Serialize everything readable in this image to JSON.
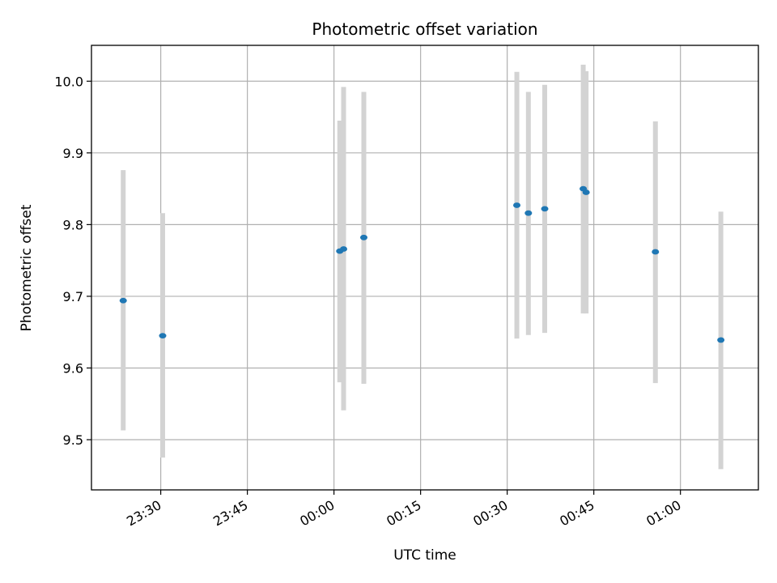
{
  "chart_data": {
    "type": "scatter",
    "title": "Photometric offset variation",
    "xlabel": "UTC time",
    "ylabel": "Photometric offset",
    "x_unit": "time (HH:MM, UTC)",
    "xlim": [
      "23:18:00",
      "01:13:30"
    ],
    "ylim": [
      9.43,
      10.05
    ],
    "x_ticks": [
      "23:30",
      "23:45",
      "00:00",
      "00:15",
      "00:30",
      "00:45",
      "01:00"
    ],
    "y_ticks": [
      9.5,
      9.6,
      9.7,
      9.8,
      9.9,
      10.0
    ],
    "grid": true,
    "error_bar_color": "#d3d3d3",
    "marker_color": "#1f77b4",
    "points": [
      {
        "time": "23:23:30",
        "y": 9.694,
        "yerr_low": 9.513,
        "yerr_high": 9.876
      },
      {
        "time": "23:30:20",
        "y": 9.645,
        "yerr_low": 9.475,
        "yerr_high": 9.816
      },
      {
        "time": "00:01:00",
        "y": 9.763,
        "yerr_low": 9.58,
        "yerr_high": 9.945
      },
      {
        "time": "00:01:40",
        "y": 9.766,
        "yerr_low": 9.541,
        "yerr_high": 9.992
      },
      {
        "time": "00:05:10",
        "y": 9.782,
        "yerr_low": 9.578,
        "yerr_high": 9.985
      },
      {
        "time": "00:31:40",
        "y": 9.827,
        "yerr_low": 9.641,
        "yerr_high": 10.013
      },
      {
        "time": "00:33:40",
        "y": 9.816,
        "yerr_low": 9.646,
        "yerr_high": 9.985
      },
      {
        "time": "00:36:30",
        "y": 9.822,
        "yerr_low": 9.649,
        "yerr_high": 9.995
      },
      {
        "time": "00:43:10",
        "y": 9.85,
        "yerr_low": 9.676,
        "yerr_high": 10.023
      },
      {
        "time": "00:43:40",
        "y": 9.845,
        "yerr_low": 9.676,
        "yerr_high": 10.014
      },
      {
        "time": "00:55:40",
        "y": 9.762,
        "yerr_low": 9.579,
        "yerr_high": 9.944
      },
      {
        "time": "01:07:00",
        "y": 9.639,
        "yerr_low": 9.459,
        "yerr_high": 9.818
      }
    ]
  }
}
